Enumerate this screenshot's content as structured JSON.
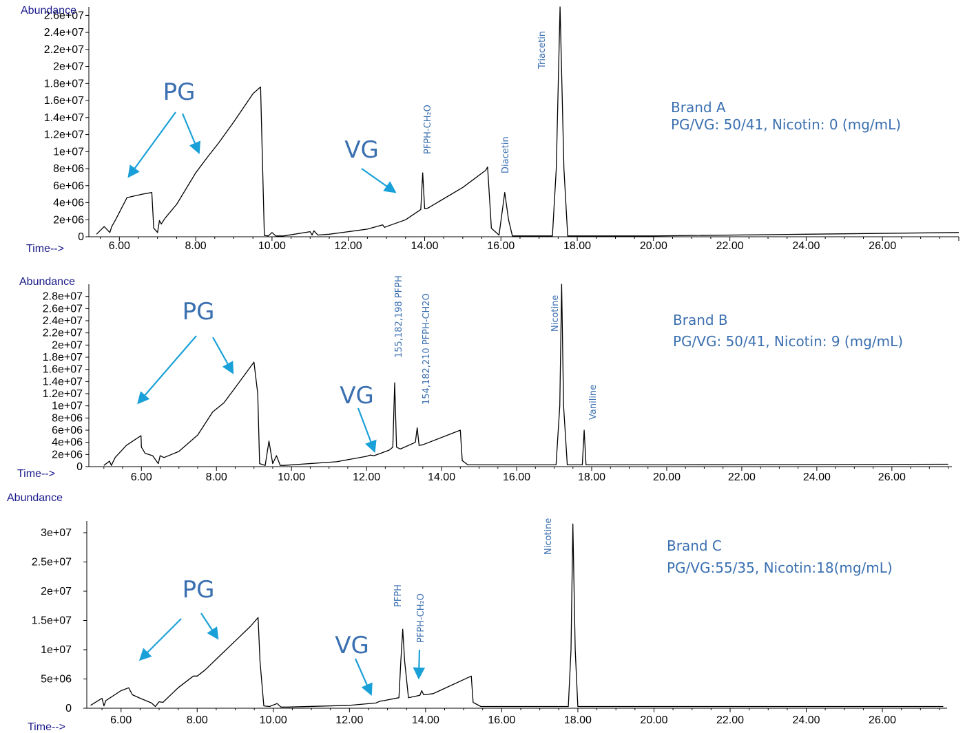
{
  "colors": {
    "trace": "#000000",
    "annotation_text": "#3a6fb0",
    "arrow": "#1aa0d8",
    "axis_name": "#1a1a8c"
  },
  "chart_data": [
    {
      "type": "line",
      "xlabel": "Time-->",
      "ylabel": "Abundance",
      "xlim": [
        5.2,
        28.0
      ],
      "ylim": [
        0,
        27000000
      ],
      "xticks": [
        "6.00",
        "8.00",
        "10.00",
        "12.00",
        "14.00",
        "16.00",
        "18.00",
        "20.00",
        "22.00",
        "24.00",
        "26.00"
      ],
      "yticks": [
        "0",
        "2e+06",
        "4e+06",
        "6e+06",
        "8e+06",
        "1e+07",
        "1.2e+07",
        "1.4e+07",
        "1.6e+07",
        "1.8e+07",
        "2e+07",
        "2.2e+07",
        "2.4e+07",
        "2.6e+07"
      ],
      "x": [
        5.4,
        5.6,
        5.75,
        5.8,
        5.9,
        6.2,
        6.6,
        6.85,
        6.9,
        7.0,
        7.05,
        7.1,
        7.2,
        7.5,
        8.0,
        8.3,
        8.6,
        9.0,
        9.5,
        9.7,
        9.75,
        9.8,
        9.9,
        10.0,
        10.1,
        10.3,
        11.0,
        11.05,
        11.1,
        11.2,
        11.5,
        12.0,
        12.5,
        12.9,
        12.95,
        13.0,
        13.5,
        13.9,
        13.95,
        14.0,
        14.05,
        14.1,
        15.0,
        15.6,
        15.65,
        15.75,
        15.95,
        16.05,
        16.1,
        16.2,
        16.3,
        17.35,
        17.45,
        17.55,
        17.65,
        17.75,
        18.0,
        20.0,
        24.0,
        28.0
      ],
      "y": [
        300000,
        1200000,
        500000,
        1200000,
        2000000,
        4600000,
        5000000,
        5200000,
        1000000,
        500000,
        1900000,
        1500000,
        2200000,
        3800000,
        7500000,
        9300000,
        11000000,
        13500000,
        16800000,
        17600000,
        9000000,
        150000,
        100000,
        500000,
        100000,
        100000,
        600000,
        200000,
        700000,
        200000,
        300000,
        600000,
        900000,
        1400000,
        1100000,
        1200000,
        2000000,
        3200000,
        7500000,
        3300000,
        3300000,
        3400000,
        5800000,
        7800000,
        8200000,
        1000000,
        200000,
        3500000,
        5200000,
        2000000,
        100000,
        100000,
        8000000,
        27000000,
        8000000,
        100000,
        100000,
        100000,
        300000,
        500000
      ],
      "annotations": {
        "big": [
          "PG",
          "VG"
        ],
        "peaks": [
          "PFPH-CH₂O",
          "Diacetin",
          "Triacetin"
        ]
      },
      "brand": "Brand A",
      "composition": "PG/VG: 50/41, Nicotin: 0 (mg/mL)"
    },
    {
      "type": "line",
      "xlabel": "Time-->",
      "ylabel": "Abundance",
      "xlim": [
        4.6,
        27.6
      ],
      "ylim": [
        0,
        30000000
      ],
      "xticks": [
        "6.00",
        "8.00",
        "10.00",
        "12.00",
        "14.00",
        "16.00",
        "18.00",
        "20.00",
        "22.00",
        "24.00",
        "26.00"
      ],
      "yticks": [
        "0",
        "2e+06",
        "4e+06",
        "6e+06",
        "8e+06",
        "1e+07",
        "1.2e+07",
        "1.4e+07",
        "1.6e+07",
        "1.8e+07",
        "2e+07",
        "2.2e+07",
        "2.4e+07",
        "2.6e+07",
        "2.8e+07"
      ],
      "x": [
        5.0,
        5.15,
        5.2,
        5.3,
        5.6,
        5.99,
        6.0,
        6.1,
        6.3,
        6.45,
        6.5,
        6.6,
        7.0,
        7.5,
        7.9,
        8.2,
        8.5,
        9.0,
        9.1,
        9.15,
        9.3,
        9.4,
        9.5,
        9.6,
        9.7,
        9.8,
        11.2,
        12.0,
        12.1,
        12.2,
        12.6,
        12.7,
        12.75,
        12.8,
        12.9,
        13.3,
        13.35,
        13.4,
        13.5,
        14.5,
        14.55,
        14.7,
        17.05,
        17.15,
        17.2,
        17.25,
        17.35,
        17.75,
        17.8,
        17.85,
        18.0,
        20.0,
        27.5
      ],
      "y": [
        200000,
        900000,
        200000,
        1500000,
        3500000,
        5100000,
        3200000,
        2200000,
        1800000,
        500000,
        1800000,
        1500000,
        2500000,
        5200000,
        9000000,
        10500000,
        13000000,
        17200000,
        12000000,
        500000,
        200000,
        4200000,
        500000,
        1800000,
        200000,
        200000,
        800000,
        1700000,
        1900000,
        1800000,
        2700000,
        3200000,
        13800000,
        3200000,
        2900000,
        4000000,
        6400000,
        3500000,
        3600000,
        6000000,
        1000000,
        300000,
        300000,
        10000000,
        30000000,
        10000000,
        300000,
        300000,
        6000000,
        300000,
        300000,
        300000,
        400000
      ],
      "annotations": {
        "big": [
          "PG",
          "VG"
        ],
        "peaks": [
          "155,182,198 PFPH",
          "154,182,210 PFPH-CH2O",
          "Nicotine",
          "Vaniline"
        ]
      },
      "brand": "Brand B",
      "composition": "PG/VG: 50/41, Nicotin: 9 (mg/mL)"
    },
    {
      "type": "line",
      "xlabel": "Time-->",
      "ylabel": "Abundance",
      "xlim": [
        5.1,
        27.7
      ],
      "ylim": [
        0,
        32000000
      ],
      "xticks": [
        "6.00",
        "8.00",
        "10.00",
        "12.00",
        "14.00",
        "16.00",
        "18.00",
        "20.00",
        "22.00",
        "24.00",
        "26.00"
      ],
      "yticks": [
        "0",
        "5e+06",
        "1e+07",
        "1.5e+07",
        "2e+07",
        "2.5e+07",
        "3e+07"
      ],
      "x": [
        5.2,
        5.5,
        5.55,
        5.6,
        6.0,
        6.2,
        6.3,
        6.5,
        6.8,
        6.9,
        7.0,
        7.1,
        7.5,
        7.9,
        8.0,
        8.2,
        8.6,
        9.0,
        9.4,
        9.6,
        9.65,
        9.75,
        9.9,
        10.1,
        10.2,
        10.4,
        12.0,
        12.7,
        12.8,
        12.9,
        13.3,
        13.35,
        13.4,
        13.45,
        13.55,
        13.85,
        13.9,
        13.95,
        14.2,
        15.2,
        15.25,
        15.45,
        17.75,
        17.82,
        17.87,
        17.93,
        18.0,
        27.6
      ],
      "y": [
        500000,
        1700000,
        400000,
        1300000,
        3000000,
        3500000,
        2300000,
        1700000,
        900000,
        300000,
        1100000,
        1000000,
        3500000,
        5500000,
        5500000,
        6500000,
        9000000,
        11500000,
        14000000,
        15500000,
        8000000,
        400000,
        300000,
        800000,
        200000,
        200000,
        500000,
        900000,
        1200000,
        1300000,
        1800000,
        8000000,
        13500000,
        8000000,
        1800000,
        2200000,
        3000000,
        2300000,
        2500000,
        5500000,
        1000000,
        300000,
        300000,
        10000000,
        31500000,
        10000000,
        300000,
        300000
      ],
      "annotations": {
        "big": [
          "PG",
          "VG"
        ],
        "peaks": [
          "PFPH",
          "PFPH-CH₂O",
          "Nicotine"
        ]
      },
      "brand": "Brand C",
      "composition": "PG/VG:55/35, Nicotin:18(mg/mL)"
    }
  ]
}
